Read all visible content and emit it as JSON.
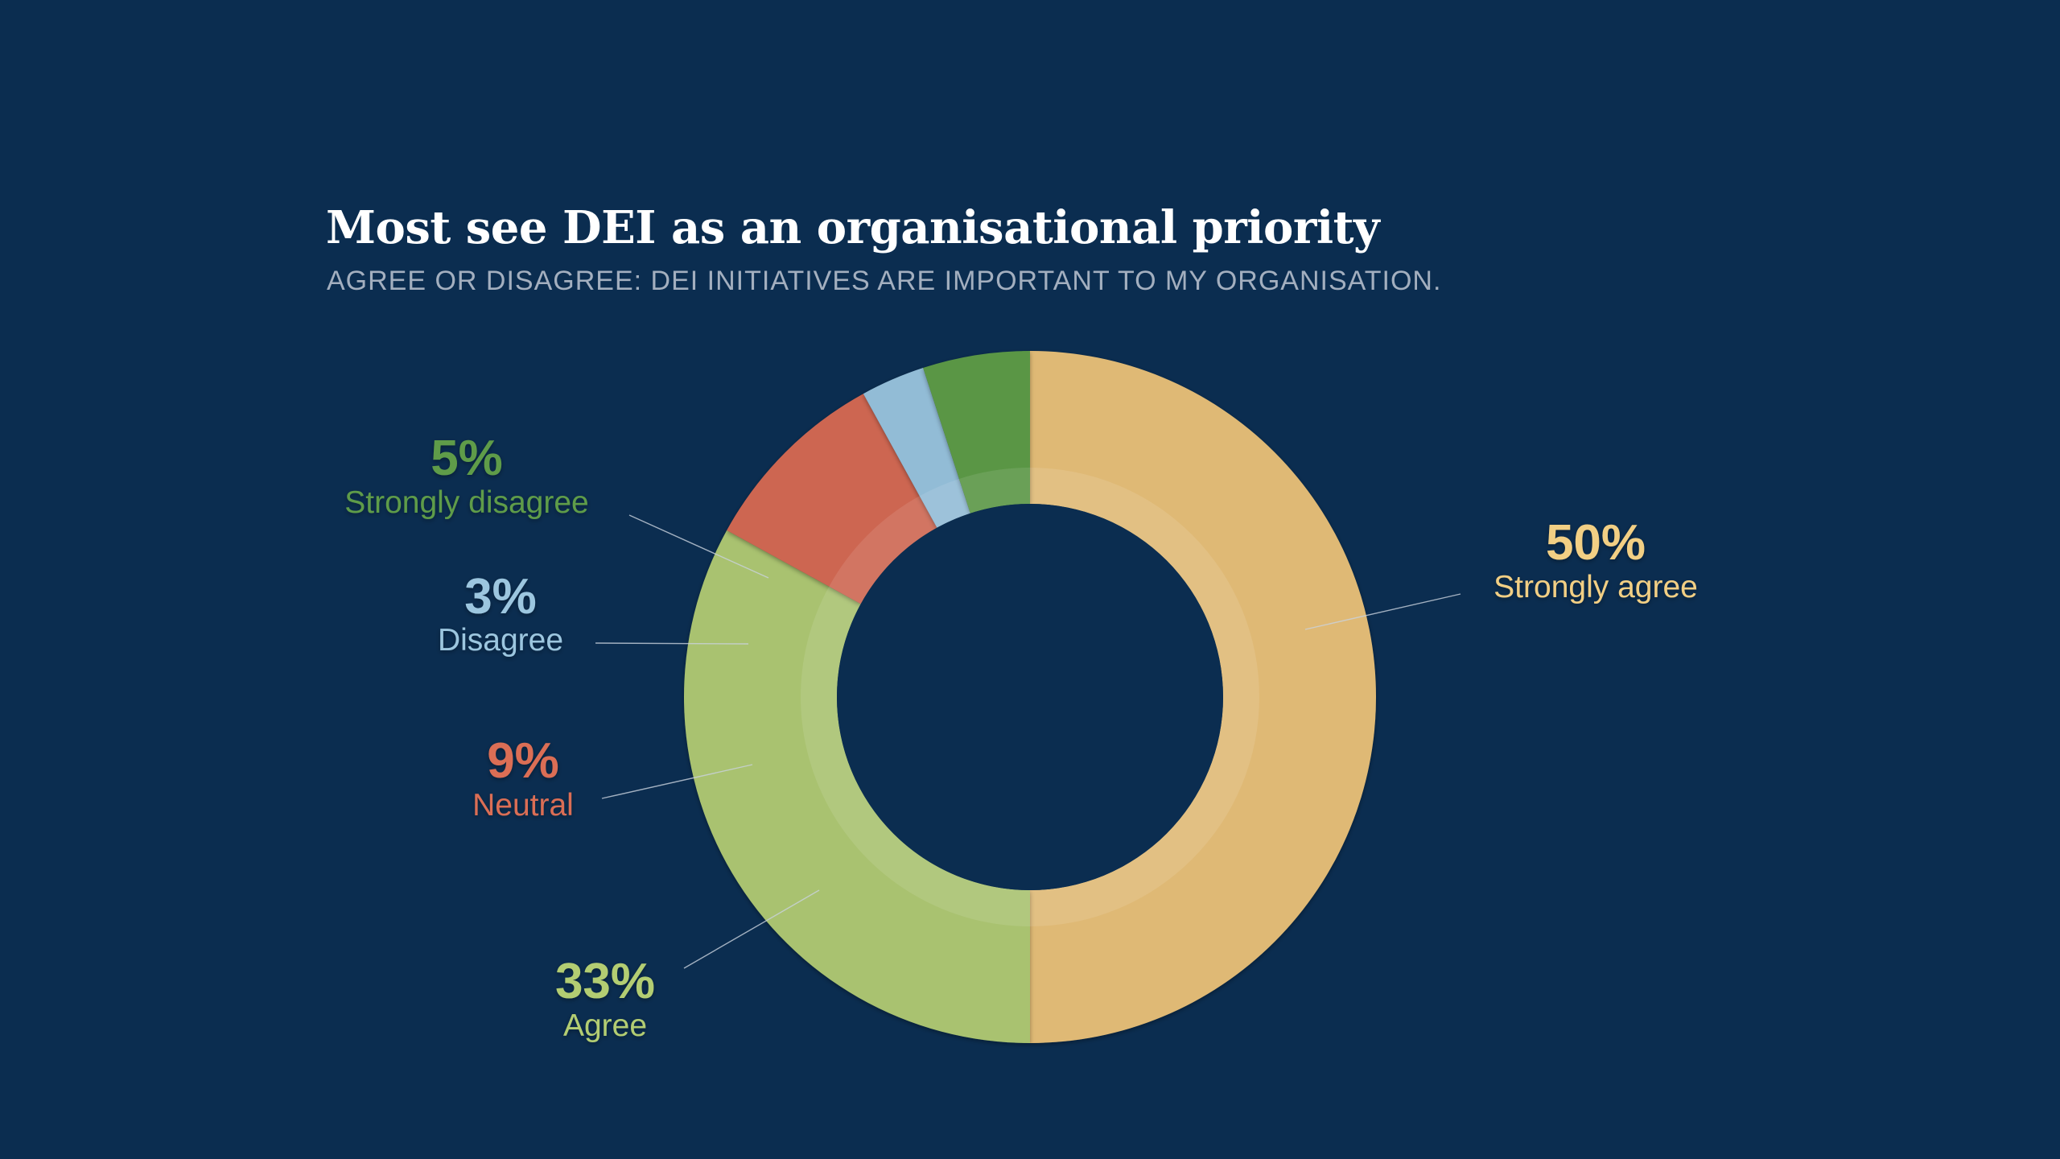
{
  "chart_data": {
    "type": "pie",
    "variant": "donut",
    "title": "Most see DEI as an organisational priority",
    "subtitle": "AGREE OR DISAGREE: DEI INITIATIVES ARE IMPORTANT TO MY ORGANISATION.",
    "slices": [
      {
        "key": "strongly-agree",
        "label": "Strongly agree",
        "value": 50,
        "value_label": "50%",
        "color": "#dfb975"
      },
      {
        "key": "agree",
        "label": "Agree",
        "value": 33,
        "value_label": "33%",
        "color": "#a9c26f"
      },
      {
        "key": "neutral",
        "label": "Neutral",
        "value": 9,
        "value_label": "9%",
        "color": "#cd6651"
      },
      {
        "key": "disagree",
        "label": "Disagree",
        "value": 3,
        "value_label": "3%",
        "color": "#92bcd6"
      },
      {
        "key": "strongly-disagree",
        "label": "Strongly disagree",
        "value": 5,
        "value_label": "5%",
        "color": "#5a9645"
      }
    ],
    "label_colors": {
      "strongly-agree": "#f2cf84",
      "agree": "#b3cd72",
      "neutral": "#db6e55",
      "disagree": "#9cc6df",
      "strongly-disagree": "#5e9c48"
    },
    "center_color": "#0b2d50"
  }
}
